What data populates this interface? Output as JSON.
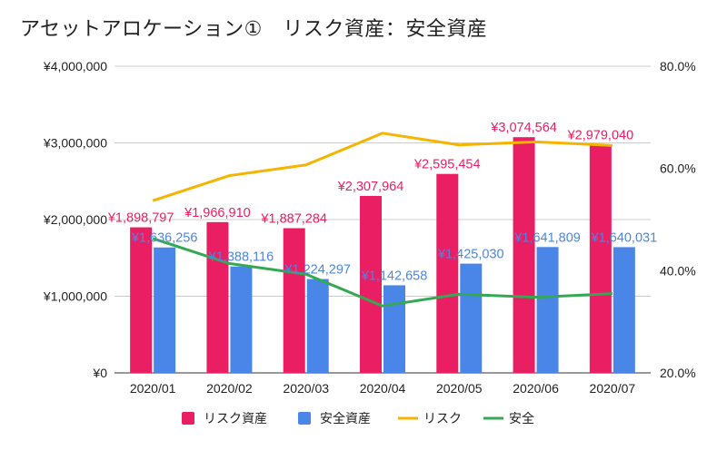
{
  "chart_data": {
    "type": "bar",
    "title": "アセットアロケーション①　リスク資産：安全資産",
    "categories": [
      "2020/01",
      "2020/02",
      "2020/03",
      "2020/04",
      "2020/05",
      "2020/06",
      "2020/07"
    ],
    "series": [
      {
        "name": "リスク資産",
        "kind": "bar",
        "axis": "left",
        "color": "#e91e63",
        "values": [
          1898797,
          1966910,
          1887284,
          2307964,
          2595454,
          3074564,
          2979040
        ],
        "labels": [
          "¥1,898,797",
          "¥1,966,910",
          "¥1,887,284",
          "¥2,307,964",
          "¥2,595,454",
          "¥3,074,564",
          "¥2,979,040"
        ]
      },
      {
        "name": "安全資産",
        "kind": "bar",
        "axis": "left",
        "color": "#4a86e8",
        "values": [
          1636256,
          1388116,
          1224297,
          1142658,
          1425030,
          1641809,
          1640031
        ],
        "labels": [
          "¥1,636,256",
          "¥1,388,116",
          "¥1,224,297",
          "¥1,142,658",
          "¥1,425,030",
          "¥1,641,809",
          "¥1,640,031"
        ]
      },
      {
        "name": "リスク",
        "kind": "line",
        "axis": "right",
        "color": "#f4b400",
        "values": [
          53.7,
          58.6,
          60.7,
          66.9,
          64.6,
          65.2,
          64.5
        ]
      },
      {
        "name": "安全",
        "kind": "line",
        "axis": "right",
        "color": "#34a853",
        "values": [
          46.3,
          41.4,
          39.3,
          33.1,
          35.4,
          34.8,
          35.5
        ]
      }
    ],
    "ylim_left": [
      0,
      4000000
    ],
    "yticks_left": [
      "¥0",
      "¥1,000,000",
      "¥2,000,000",
      "¥3,000,000",
      "¥4,000,000"
    ],
    "ylim_right": [
      20,
      80
    ],
    "yticks_right": [
      "20.0%",
      "40.0%",
      "60.0%",
      "80.0%"
    ],
    "grid": true,
    "legend_position": "bottom"
  }
}
